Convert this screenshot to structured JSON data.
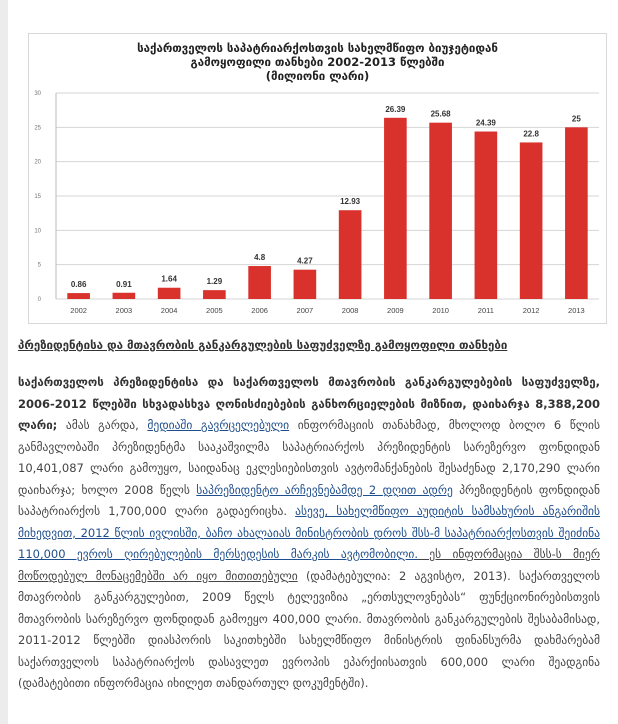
{
  "chart_data": {
    "type": "bar",
    "title_lines": [
      "საქართველოს საპატრიარქოსთვის სახელმწიფო ბიუჯეტიდან",
      "გამოყოფილი თანხები 2002-2013 წლებში",
      "(მილიონი ლარი)"
    ],
    "categories": [
      "2002",
      "2003",
      "2004",
      "2005",
      "2006",
      "2007",
      "2008",
      "2009",
      "2010",
      "2011",
      "2012",
      "2013"
    ],
    "values": [
      0.86,
      0.91,
      1.64,
      1.29,
      4.8,
      4.27,
      12.93,
      26.39,
      25.68,
      24.39,
      22.8,
      25
    ],
    "labels": [
      "0.86",
      "0.91",
      "1.64",
      "1.29",
      "4.8",
      "4.27",
      "12.93",
      "26.39",
      "25.68",
      "24.39",
      "22.8",
      "25"
    ],
    "yticks": [
      0,
      5,
      10,
      15,
      20,
      25,
      30
    ],
    "ylim": [
      0,
      30
    ],
    "bar_color": "#d9312c",
    "grid": true
  },
  "heading": "პრეზიდენტისა და მთავრობის განკარგულების საფუძველზე გამოყოფილი თანხები",
  "para": {
    "bold": "საქართველოს პრეზიდენტისა და საქართველოს მთავრობის განკარგულებების საფუძველზე, 2006-2012 წლებში სხვადასხვა ღონისძიებების განხორციელების მიზნით, დაიხარჯა 8,388,200 ლარი;",
    "t1": " ამას გარდა, ",
    "link1": "მედიაში გავრცელებული",
    "t2": " ინფორმაციის თანახმად, მხოლოდ ბოლო 6 წლის განმავლობაში პრეზიდენტმა სააკაშვილმა საპატრიარქოს პრეზიდენტის სარეზერვო ფონდიდან 10,401,087 ლარი გამოუყო, საიდანაც ეკლესიებისთვის ავტომანქანების შესაძენად 2,170,290 ლარი დაიხარჯა; ხოლო 2008 წელს ",
    "link2": "საპრეზიდენტო არჩევნებამდე 2 დღით ადრე",
    "t3": " პრეზიდენტის ფონდიდან საპატრიარქოს 1,700,000 ლარი გადაერიცხა. ",
    "link3": "ასევე, სახელმწიფო აუდიტის სამსახურის ანგარიშის მიხედვით, 2012 წლის ივლისში, ბაჩო ახალაიას მინისტრობის დროს შსს-მ საპატრიარქოსთვის შეიძინა 110,000 ევროს ღირებულების მერსედესის მარკის ავტომობილი.",
    "ul1": " ეს ინფორმაცია შსს-ს მიერ მოწოდებულ მონაცემებში არ იყო მითითებული",
    "t4": " (დამატებულია: 2 აგვისტო, 2013). საქართველოს მთავრობის განკარგულებით, 2009 წელს ტელევიზია „ერთსულოვნებას“ ფუნქციონირებისთვის მთავრობის სარეზერვო ფონდიდან გამოეყო 400,000 ლარი.  მთავრობის განკარგულების შესაბამისად, 2011-2012 წლებში დიასპორის საკითხებში სახელმწიფო მინისტრის ფინანსურმა დახმარებამ საქართველოს საპატრიარქოს დასავლეთ ევროპის ეპარქიისათვის 600,000 ლარი შეადგინა (დამატებითი ინფორმაცია იხილეთ თანდართულ დოკუმენტში)."
  }
}
